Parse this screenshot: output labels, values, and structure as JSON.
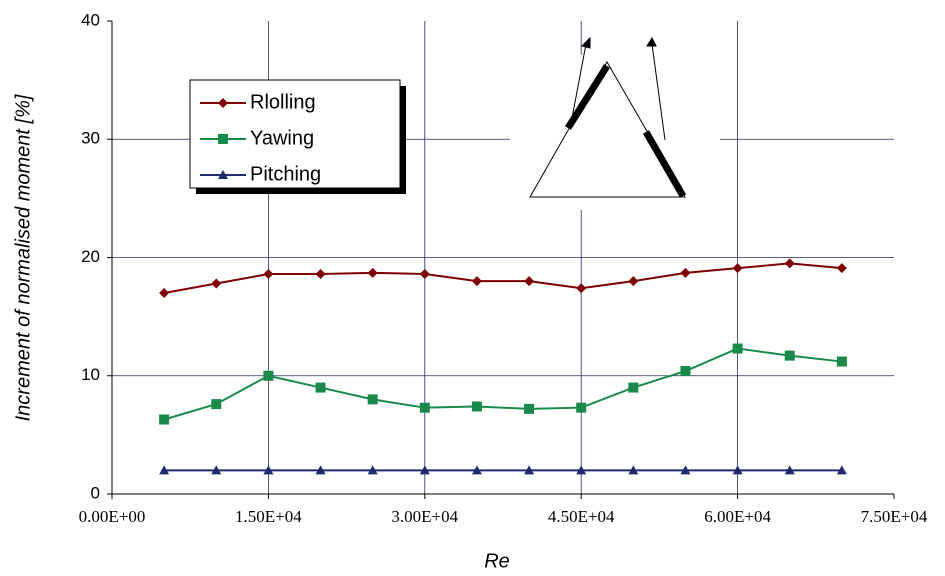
{
  "chart_data": {
    "type": "line",
    "x_label": "Re",
    "y_label": "Increment of normalised moment [%]",
    "x": [
      5000,
      10000,
      15000,
      20000,
      25000,
      30000,
      35000,
      40000,
      45000,
      50000,
      55000,
      60000,
      65000,
      70000
    ],
    "series": [
      {
        "name": "Rlolling",
        "color": "#7f0000",
        "marker": "diamond",
        "values": [
          17.0,
          17.8,
          18.6,
          18.6,
          18.7,
          18.6,
          18.0,
          18.0,
          17.4,
          18.0,
          18.7,
          19.1,
          19.5,
          19.1
        ]
      },
      {
        "name": "Yawing",
        "color": "#1a8a4a",
        "marker": "square",
        "values": [
          6.3,
          7.6,
          10.0,
          9.0,
          8.0,
          7.3,
          7.4,
          7.2,
          7.3,
          9.0,
          10.4,
          12.3,
          11.7,
          11.2
        ]
      },
      {
        "name": "Pitching",
        "color": "#1f2a6e",
        "marker": "triangle",
        "values": [
          2.0,
          2.0,
          2.0,
          2.0,
          2.0,
          2.0,
          2.0,
          2.0,
          2.0,
          2.0,
          2.0,
          2.0,
          2.0,
          2.0
        ]
      }
    ],
    "xlim": [
      0,
      75000
    ],
    "xticks": [
      {
        "value": 0,
        "label": "0.00E+00"
      },
      {
        "value": 15000,
        "label": "1.50E+04"
      },
      {
        "value": 30000,
        "label": "3.00E+04"
      },
      {
        "value": 45000,
        "label": "4.50E+04"
      },
      {
        "value": 60000,
        "label": "6.00E+04"
      },
      {
        "value": 75000,
        "label": "7.50E+04"
      }
    ],
    "ylim": [
      0,
      40
    ],
    "yticks": [
      0,
      10,
      20,
      30,
      40
    ],
    "grid": true
  }
}
